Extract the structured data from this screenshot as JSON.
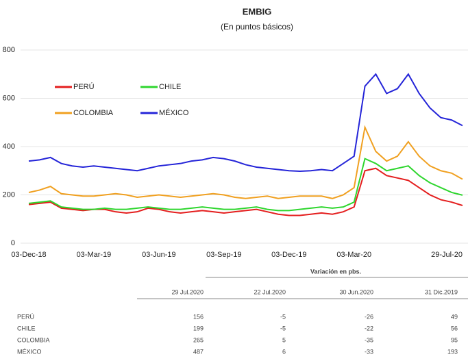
{
  "chart_data": {
    "type": "line",
    "title": "EMBIG",
    "subtitle": "(En puntos básicos)",
    "categories": [
      "03-Dec-18",
      null,
      null,
      null,
      null,
      null,
      "03-Mar-19",
      null,
      null,
      null,
      null,
      null,
      "03-Jun-19",
      null,
      null,
      null,
      null,
      null,
      "03-Sep-19",
      null,
      null,
      null,
      null,
      null,
      "03-Dec-19",
      null,
      null,
      null,
      null,
      null,
      "03-Mar-20",
      null,
      null,
      null,
      null,
      null,
      null,
      null,
      null,
      null,
      "29-Jul-20"
    ],
    "series": [
      {
        "name": "PERÚ",
        "color": "#e41e1e",
        "values": [
          160,
          165,
          170,
          145,
          140,
          135,
          140,
          140,
          130,
          125,
          130,
          145,
          140,
          130,
          125,
          130,
          135,
          130,
          125,
          130,
          135,
          140,
          130,
          120,
          115,
          115,
          120,
          125,
          120,
          130,
          150,
          300,
          310,
          280,
          270,
          260,
          230,
          200,
          180,
          170,
          156
        ]
      },
      {
        "name": "CHILE",
        "color": "#2ed62e",
        "values": [
          165,
          170,
          175,
          150,
          145,
          140,
          140,
          145,
          140,
          140,
          145,
          150,
          145,
          140,
          140,
          145,
          150,
          145,
          140,
          140,
          145,
          150,
          140,
          135,
          135,
          140,
          145,
          150,
          145,
          150,
          170,
          350,
          330,
          300,
          310,
          320,
          280,
          250,
          230,
          210,
          199
        ]
      },
      {
        "name": "COLOMBIA",
        "color": "#f0a020",
        "values": [
          210,
          220,
          235,
          205,
          200,
          195,
          195,
          200,
          205,
          200,
          190,
          195,
          200,
          195,
          190,
          195,
          200,
          205,
          200,
          190,
          185,
          190,
          195,
          185,
          190,
          195,
          195,
          195,
          185,
          200,
          230,
          480,
          380,
          340,
          360,
          420,
          360,
          320,
          300,
          290,
          265
        ]
      },
      {
        "name": "MÉXICO",
        "color": "#2424d8",
        "values": [
          340,
          345,
          355,
          330,
          320,
          315,
          320,
          315,
          310,
          305,
          300,
          310,
          320,
          325,
          330,
          340,
          345,
          355,
          350,
          340,
          325,
          315,
          310,
          305,
          300,
          298,
          300,
          305,
          300,
          330,
          360,
          650,
          700,
          620,
          640,
          700,
          620,
          560,
          520,
          510,
          487
        ]
      }
    ],
    "ylim": [
      0,
      800
    ],
    "yticks": [
      0,
      200,
      400,
      600,
      800
    ],
    "grid": true
  },
  "table": {
    "group_header": "Variación en pbs.",
    "columns": [
      "29 Jul.2020",
      "22 Jul.2020",
      "30 Jun.2020",
      "31 Dic.2019"
    ],
    "rows": [
      [
        "PERÚ",
        156,
        -5,
        -26,
        49
      ],
      [
        "CHILE",
        199,
        -5,
        -22,
        56
      ],
      [
        "COLOMBIA",
        265,
        5,
        -35,
        95
      ],
      [
        "MÉXICO",
        487,
        6,
        -33,
        193
      ]
    ]
  }
}
